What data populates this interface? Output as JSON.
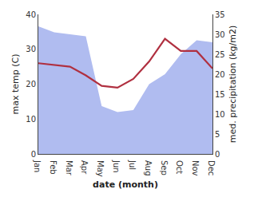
{
  "chart_data": {
    "type": "line",
    "xlabel": "date (month)",
    "ylabel": "max temp (C)",
    "y2label": "med. precipitation (kg/m2)",
    "categories": [
      "Jan",
      "Feb",
      "Mar",
      "Apr",
      "May",
      "Jun",
      "Jul",
      "Aug",
      "Sep",
      "Oct",
      "Nov",
      "Dec"
    ],
    "series": [
      {
        "type": "area",
        "axis": "y2",
        "color": "#b0bcf0",
        "values": [
          32.0,
          30.5,
          30.0,
          29.5,
          12.0,
          10.5,
          11.0,
          17.5,
          20.0,
          25.0,
          28.5,
          28.0
        ]
      },
      {
        "type": "line",
        "color": "#b03040",
        "values": [
          26.0,
          25.5,
          25.0,
          22.5,
          19.5,
          19.0,
          21.5,
          26.5,
          33.0,
          29.5,
          29.5,
          24.5
        ]
      }
    ],
    "ylim": [
      0,
      40
    ],
    "yticks": [
      0,
      10,
      20,
      30,
      40
    ],
    "y2lim": [
      0,
      35
    ],
    "y2ticks": [
      0,
      5,
      10,
      15,
      20,
      25,
      30,
      35
    ],
    "grid": false
  }
}
